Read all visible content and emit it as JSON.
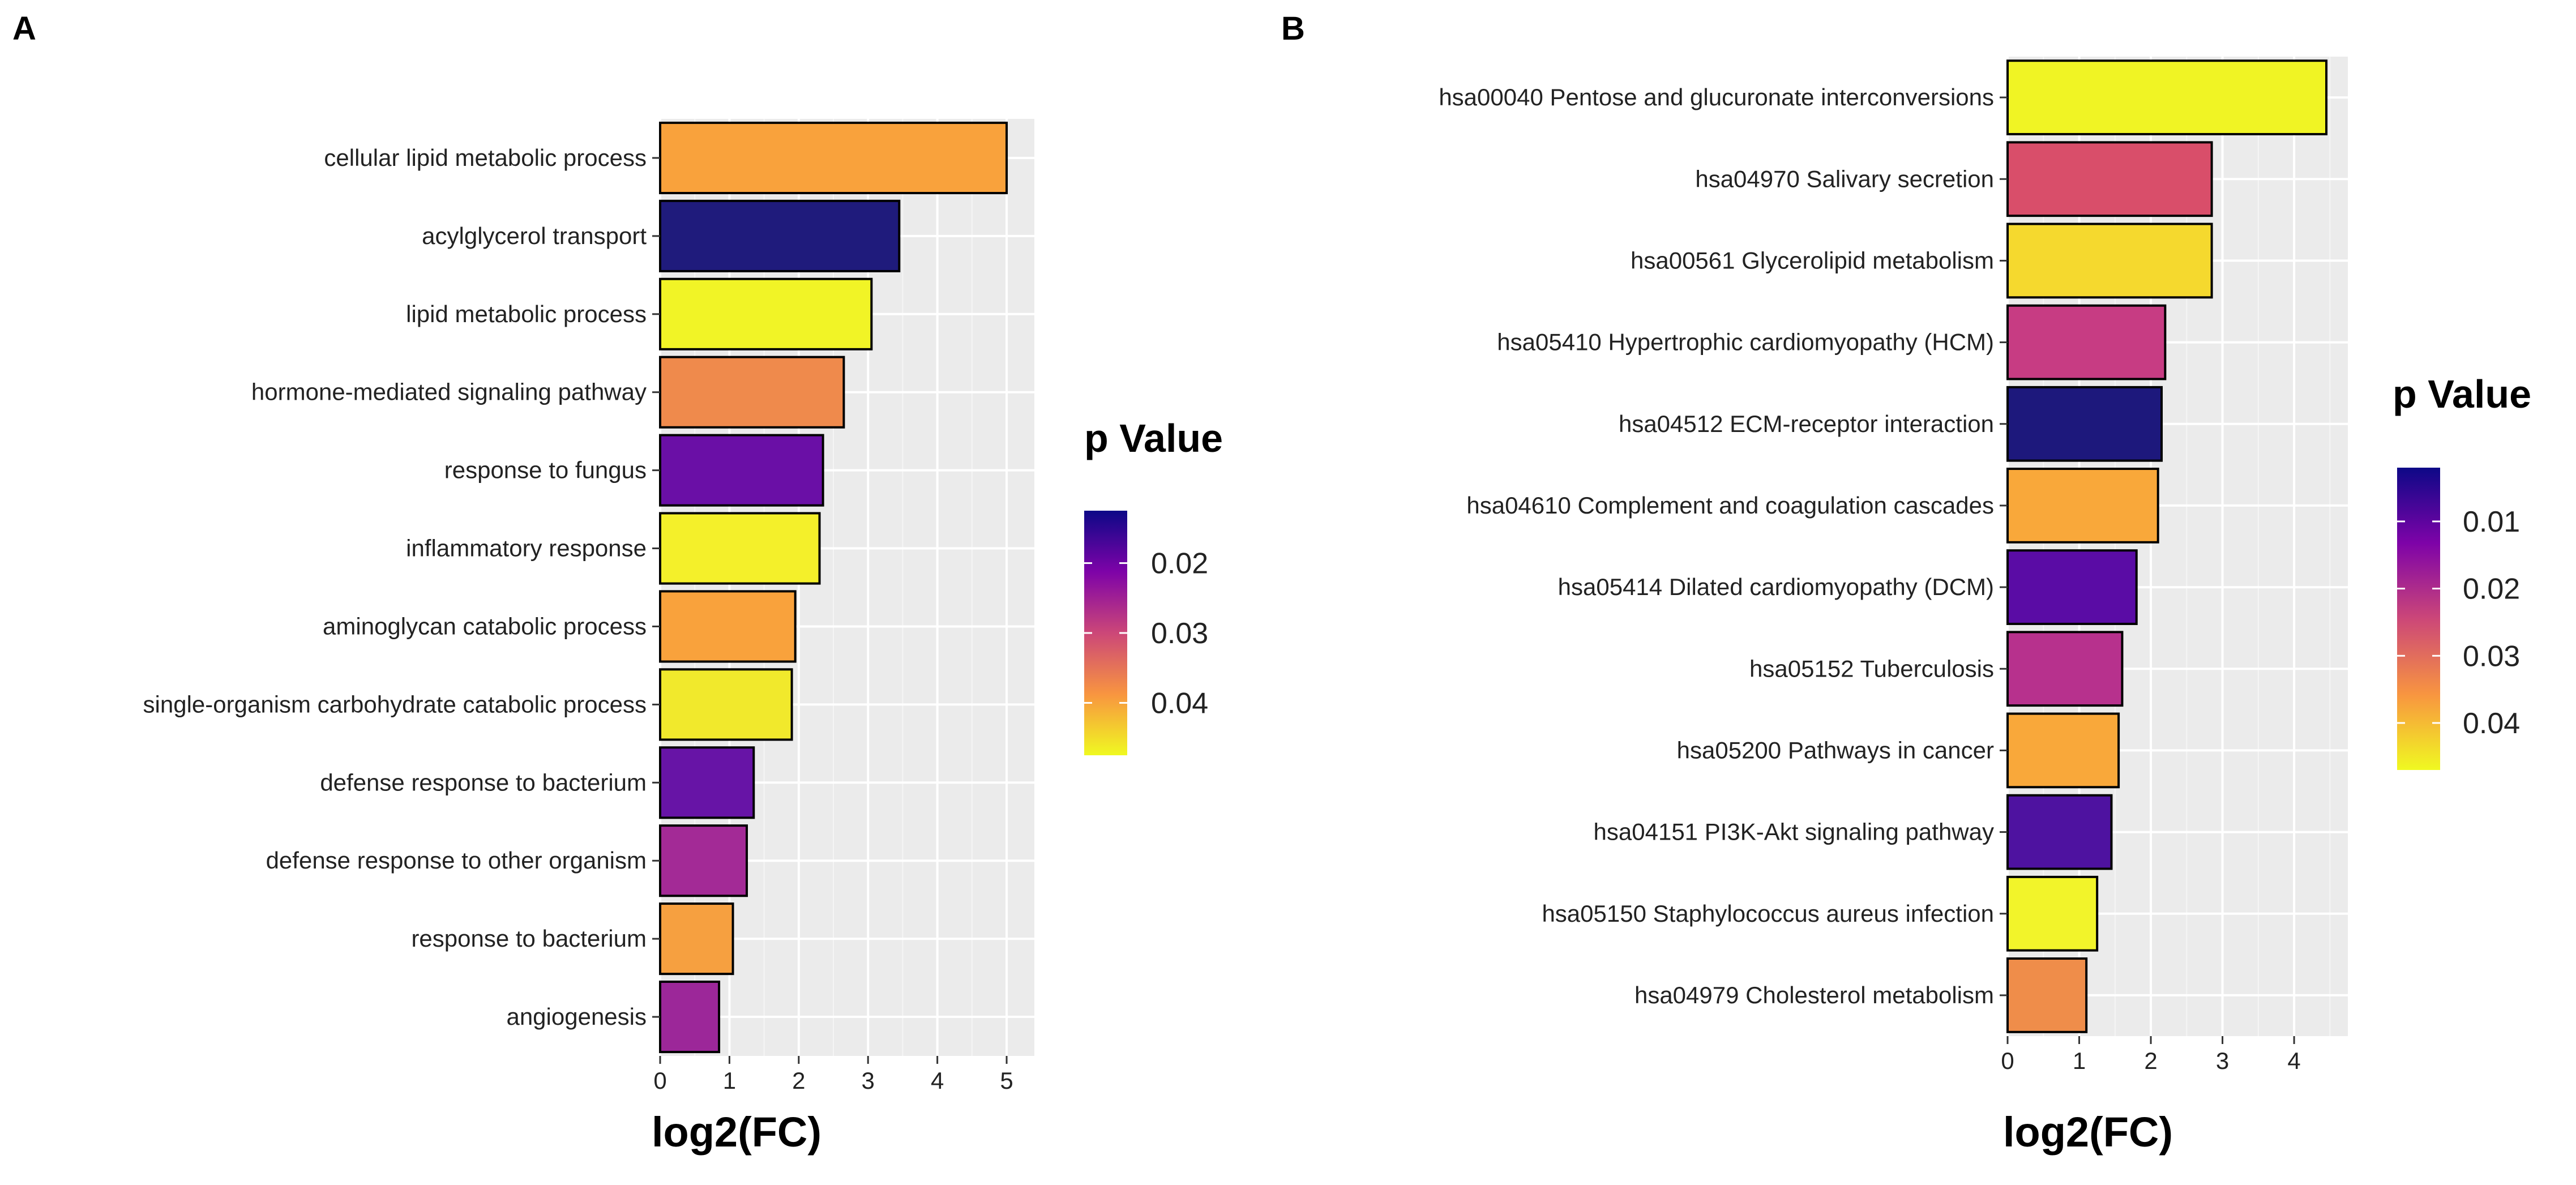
{
  "chart_data": [
    {
      "panel_label": "A",
      "type": "bar",
      "orientation": "horizontal",
      "title": "",
      "xlabel": "log2(FC)",
      "ylabel": "",
      "xlim": [
        0,
        5.4
      ],
      "x_ticks": [
        "0",
        "1",
        "2",
        "3",
        "4",
        "5"
      ],
      "grid": true,
      "categories": [
        "cellular lipid metabolic process",
        "acylglycerol transport",
        "lipid metabolic process",
        "hormone-mediated signaling pathway",
        "response to fungus",
        "inflammatory response",
        "aminoglycan catabolic process",
        "single-organism carbohydrate catabolic process",
        "defense response to bacterium",
        "defense response to other organism",
        "response to bacterium",
        "angiogenesis"
      ],
      "values": [
        5.0,
        3.45,
        3.05,
        2.65,
        2.35,
        2.3,
        1.95,
        1.9,
        1.35,
        1.25,
        1.05,
        0.85
      ],
      "p_values": [
        0.041,
        0.013,
        0.047,
        0.038,
        0.019,
        0.047,
        0.041,
        0.046,
        0.019,
        0.024,
        0.041,
        0.023
      ],
      "colors": [
        "#f9a23c",
        "#1f1b7c",
        "#f1f426",
        "#ef8a4c",
        "#6a0fa6",
        "#f4f02a",
        "#f9a23c",
        "#f1e92c",
        "#6714a6",
        "#a32a96",
        "#f6a040",
        "#9c2799"
      ],
      "legend": {
        "title": "p Value",
        "position": "right",
        "ticks": [
          "0.02",
          "0.03",
          "0.04"
        ],
        "min": 0.0125,
        "max": 0.0475,
        "tick_values": [
          0.02,
          0.03,
          0.04
        ]
      }
    },
    {
      "panel_label": "B",
      "type": "bar",
      "orientation": "horizontal",
      "title": "",
      "xlabel": "log2(FC)",
      "ylabel": "",
      "xlim": [
        0,
        4.75
      ],
      "x_ticks": [
        "0",
        "1",
        "2",
        "3",
        "4"
      ],
      "grid": true,
      "categories": [
        "hsa00040 Pentose and glucuronate interconversions",
        "hsa04970 Salivary secretion",
        "hsa00561 Glycerolipid metabolism",
        "hsa05410 Hypertrophic cardiomyopathy (HCM)",
        "hsa04512 ECM-receptor interaction",
        "hsa04610 Complement and coagulation cascades",
        "hsa05414 Dilated cardiomyopathy (DCM)",
        "hsa05152 Tuberculosis",
        "hsa05200 Pathways in cancer",
        "hsa04151 PI3K-Akt signaling pathway",
        "hsa05150 Staphylococcus aureus infection",
        "hsa04979 Cholesterol metabolism"
      ],
      "values": [
        4.45,
        2.85,
        2.85,
        2.2,
        2.15,
        2.1,
        1.8,
        1.6,
        1.55,
        1.45,
        1.25,
        1.1
      ],
      "p_values": [
        0.045,
        0.028,
        0.04,
        0.023,
        0.004,
        0.036,
        0.012,
        0.021,
        0.036,
        0.01,
        0.045,
        0.033
      ],
      "colors": [
        "#f0f424",
        "#d94e6a",
        "#f5d92e",
        "#c73c83",
        "#1d187c",
        "#f9a83a",
        "#5a0ca5",
        "#b7318d",
        "#f9a83a",
        "#4e12a0",
        "#f2f42a",
        "#ef8d4a"
      ],
      "legend": {
        "title": "p Value",
        "position": "right",
        "ticks": [
          "0.01",
          "0.02",
          "0.03",
          "0.04"
        ],
        "min": 0.002,
        "max": 0.047,
        "tick_values": [
          0.01,
          0.02,
          0.03,
          0.04
        ]
      }
    }
  ]
}
